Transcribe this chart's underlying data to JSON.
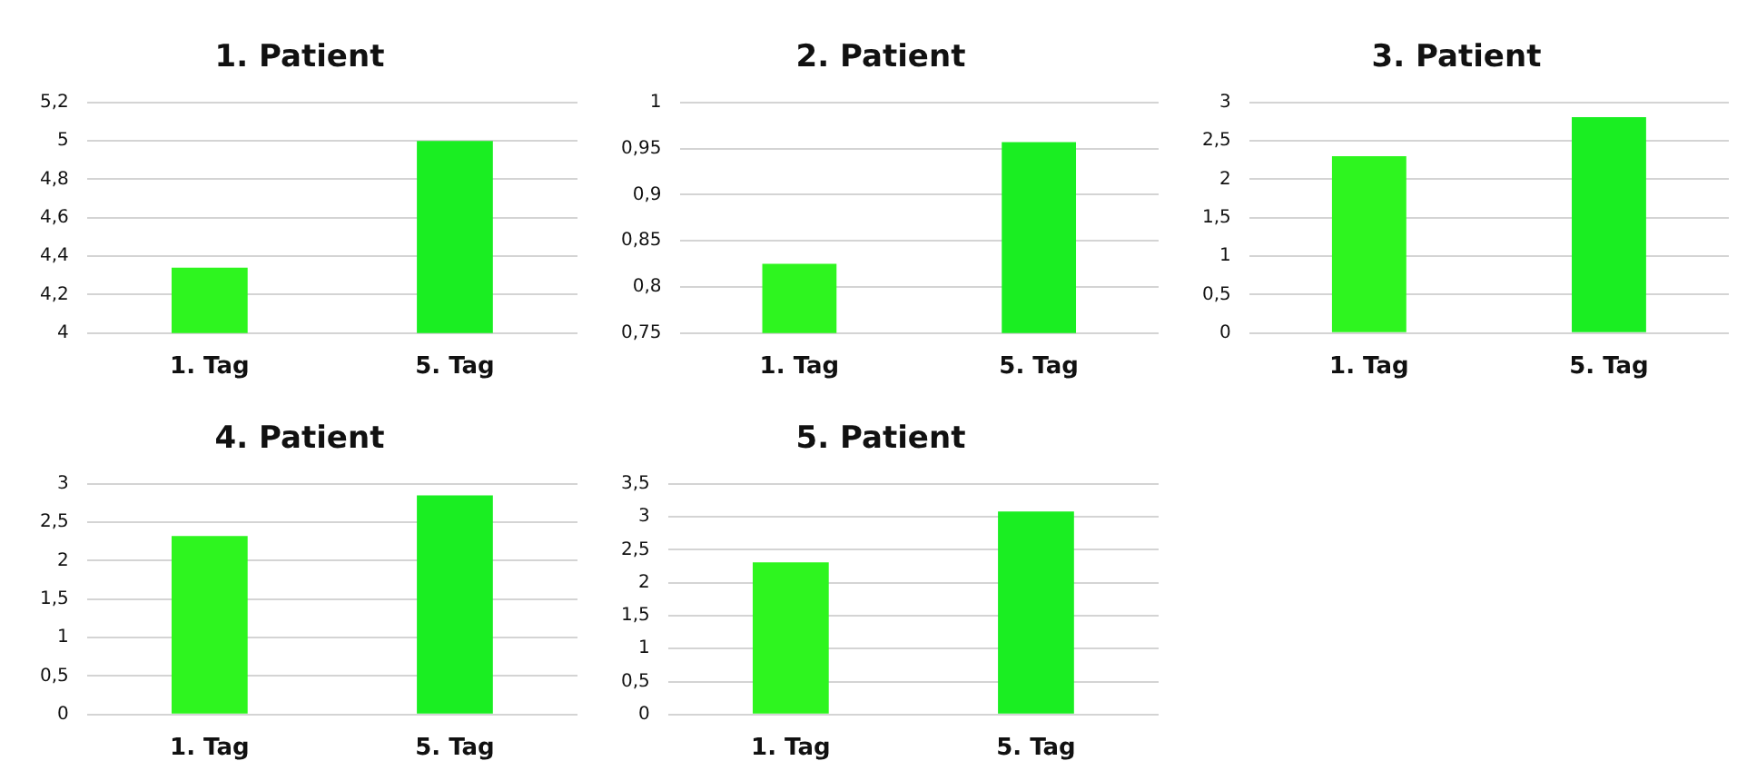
{
  "chart_data": [
    {
      "type": "bar",
      "title": "1. Patient",
      "categories": [
        "1. Tag",
        "5. Tag"
      ],
      "values": [
        4.34,
        5.0
      ],
      "colors": [
        "#2ef51f",
        "#1aee22"
      ],
      "ylim": [
        4,
        5.2
      ],
      "yticks": [
        4,
        {
          "value": 4.2,
          "label": "4,2"
        },
        {
          "value": 4.4,
          "label": "4,4"
        },
        {
          "value": 4.6,
          "label": "4,6"
        },
        {
          "value": 4.8,
          "label": "4,8"
        },
        5,
        {
          "value": 5.2,
          "label": "5,2"
        }
      ],
      "grid": "y"
    },
    {
      "type": "bar",
      "title": "2. Patient",
      "categories": [
        "1. Tag",
        "5. Tag"
      ],
      "values": [
        0.825,
        0.957
      ],
      "colors": [
        "#2ef51f",
        "#1aee22"
      ],
      "ylim": [
        0.75,
        1
      ],
      "yticks": [
        {
          "value": 0.75,
          "label": "0,75"
        },
        {
          "value": 0.8,
          "label": "0,8"
        },
        {
          "value": 0.85,
          "label": "0,85"
        },
        {
          "value": 0.9,
          "label": "0,9"
        },
        {
          "value": 0.95,
          "label": "0,95"
        },
        1
      ],
      "grid": "y"
    },
    {
      "type": "bar",
      "title": "3. Patient",
      "categories": [
        "1. Tag",
        "5. Tag"
      ],
      "values": [
        2.3,
        2.81
      ],
      "colors": [
        "#2ef51f",
        "#1aee22"
      ],
      "ylim": [
        0,
        3
      ],
      "yticks": [
        0,
        {
          "value": 0.5,
          "label": "0,5"
        },
        1,
        {
          "value": 1.5,
          "label": "1,5"
        },
        2,
        {
          "value": 2.5,
          "label": "2,5"
        },
        3
      ],
      "grid": "y"
    },
    {
      "type": "bar",
      "title": "4. Patient",
      "categories": [
        "1. Tag",
        "5. Tag"
      ],
      "values": [
        2.32,
        2.85
      ],
      "colors": [
        "#2ef51f",
        "#1aee22"
      ],
      "ylim": [
        0,
        3
      ],
      "yticks": [
        0,
        {
          "value": 0.5,
          "label": "0,5"
        },
        1,
        {
          "value": 1.5,
          "label": "1,5"
        },
        2,
        {
          "value": 2.5,
          "label": "2,5"
        },
        3
      ],
      "grid": "y"
    },
    {
      "type": "bar",
      "title": "5. Patient",
      "categories": [
        "1. Tag",
        "5. Tag"
      ],
      "values": [
        2.31,
        3.08
      ],
      "colors": [
        "#2ef51f",
        "#1aee22"
      ],
      "ylim": [
        0,
        3.5
      ],
      "yticks": [
        0,
        {
          "value": 0.5,
          "label": "0,5"
        },
        1,
        {
          "value": 1.5,
          "label": "1,5"
        },
        2,
        {
          "value": 2.5,
          "label": "2,5"
        },
        3,
        {
          "value": 3.5,
          "label": "3,5"
        }
      ],
      "grid": "y"
    }
  ]
}
